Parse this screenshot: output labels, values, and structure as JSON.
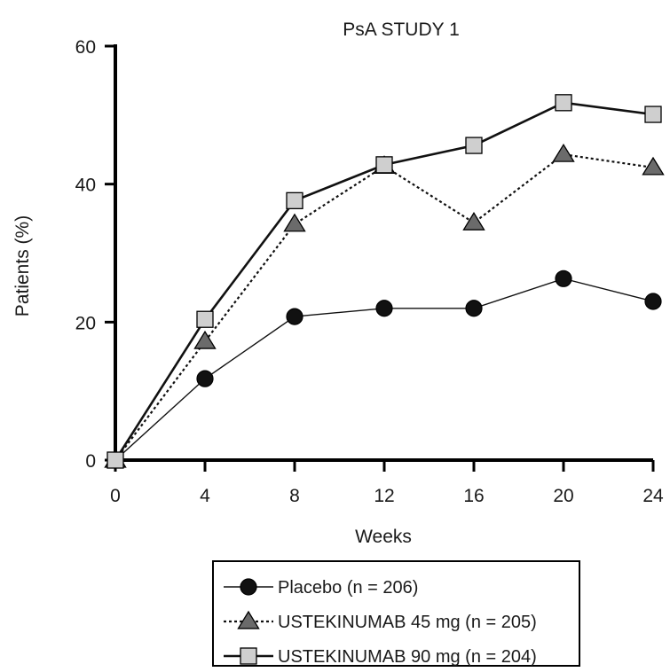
{
  "chart_data": {
    "type": "line",
    "title": "PsA STUDY 1",
    "xlabel": "Weeks",
    "ylabel": "Patients (%)",
    "x": [
      0,
      4,
      8,
      12,
      16,
      20,
      24
    ],
    "xticks": [
      "0",
      "4",
      "8",
      "12",
      "16",
      "20",
      "24"
    ],
    "yticks": [
      "0",
      "20",
      "40",
      "60"
    ],
    "xlim": [
      0,
      24
    ],
    "ylim": [
      0,
      60
    ],
    "grid": false,
    "legend_position": "bottom",
    "series": [
      {
        "name": "Placebo (n = 206)",
        "values": [
          0,
          11.8,
          20.8,
          22.0,
          22.0,
          26.3,
          23.0
        ],
        "marker": "circle",
        "line_style": "solid-thin",
        "marker_color": "#111111"
      },
      {
        "name": "USTEKINUMAB 45 mg (n = 205)",
        "values": [
          0,
          17.2,
          34.2,
          42.6,
          34.4,
          44.3,
          42.4
        ],
        "marker": "triangle",
        "line_style": "dotted",
        "marker_color": "#6b6b6b"
      },
      {
        "name": "USTEKINUMAB 90 mg (n = 204)",
        "values": [
          0,
          20.4,
          37.6,
          42.8,
          45.6,
          51.8,
          50.1
        ],
        "marker": "square",
        "line_style": "solid-thick",
        "marker_color": "#cfcfcf"
      }
    ]
  }
}
